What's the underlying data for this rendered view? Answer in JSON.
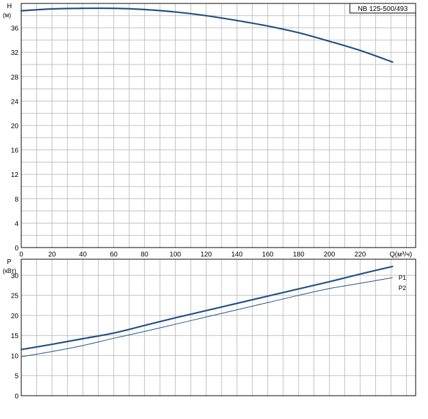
{
  "chart_data": [
    {
      "type": "line",
      "title": "NB 125-500/493",
      "ylabel": "H",
      "yunit": "(м)",
      "xlabel": "Q(м³/ч)",
      "xlim": [
        0,
        256
      ],
      "ylim": [
        0,
        40
      ],
      "xticks": [
        0,
        20,
        40,
        60,
        80,
        100,
        120,
        140,
        160,
        180,
        200,
        220
      ],
      "yticks": [
        0,
        4,
        8,
        12,
        16,
        20,
        24,
        28,
        32,
        36
      ],
      "grid": true,
      "colors": {
        "curve": "#1f4f82",
        "grid": "#c0c0c0",
        "frame": "#000000"
      },
      "series": [
        {
          "x": [
            0,
            20,
            40,
            60,
            80,
            100,
            120,
            140,
            160,
            180,
            200,
            220,
            241
          ],
          "y": [
            38.8,
            39.1,
            39.2,
            39.2,
            39.0,
            38.6,
            38.0,
            37.2,
            36.3,
            35.2,
            33.8,
            32.3,
            30.4
          ]
        }
      ]
    },
    {
      "type": "line",
      "ylabel": "P",
      "yunit": "(кВт)",
      "xlim": [
        0,
        256
      ],
      "ylim": [
        0,
        34
      ],
      "yticks": [
        0,
        5,
        10,
        15,
        20,
        25,
        30
      ],
      "grid": true,
      "series": [
        {
          "name": "P1",
          "x": [
            0,
            20,
            40,
            60,
            80,
            100,
            120,
            140,
            160,
            180,
            200,
            220,
            241
          ],
          "y": [
            11.5,
            12.8,
            14.2,
            15.6,
            17.5,
            19.4,
            21.2,
            23.0,
            24.8,
            26.6,
            28.4,
            30.3,
            32.2
          ]
        },
        {
          "name": "P2",
          "x": [
            0,
            20,
            40,
            60,
            80,
            100,
            120,
            140,
            160,
            180,
            200,
            220,
            241
          ],
          "y": [
            9.7,
            11.0,
            12.5,
            14.3,
            16.0,
            17.8,
            19.6,
            21.4,
            23.2,
            25.0,
            26.7,
            28.0,
            29.4
          ]
        }
      ]
    }
  ]
}
